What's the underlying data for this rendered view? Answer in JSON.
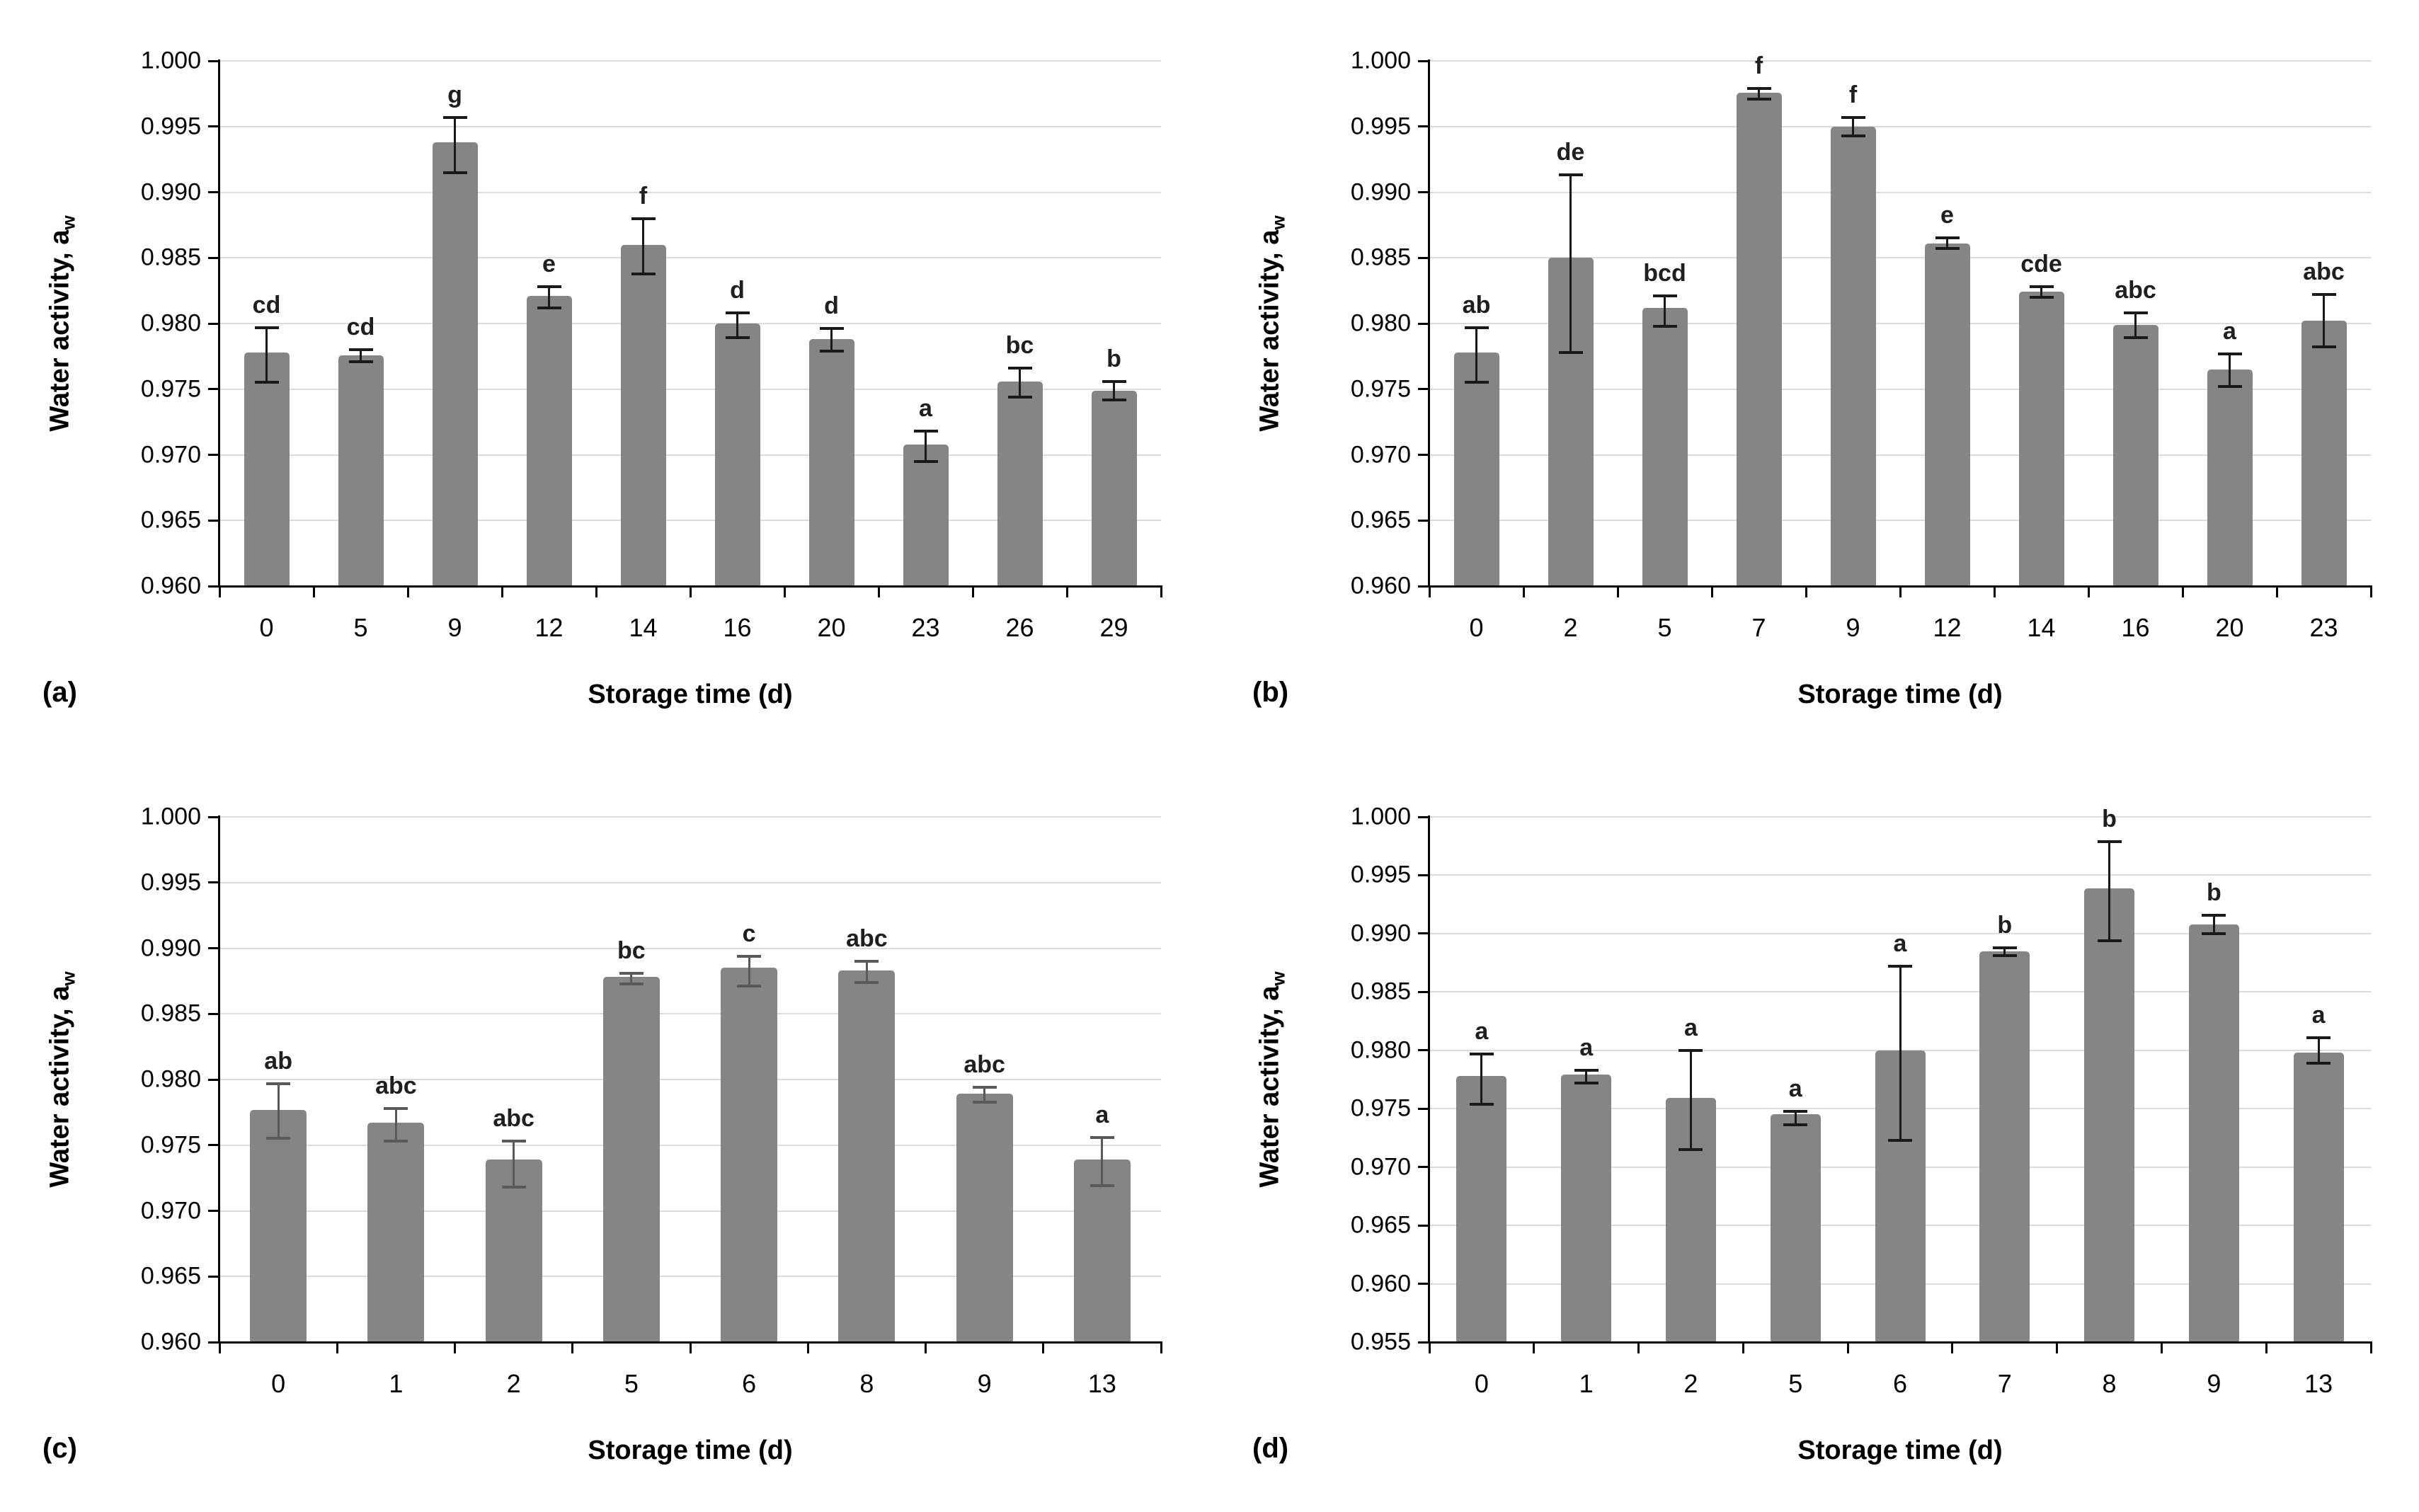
{
  "figure": {
    "y_title_main": "Water activity, a",
    "y_title_sub": "w",
    "x_axis_title": "Storage time (d)",
    "colors": {
      "bar_fill": "#858585",
      "error_default": "#1a1a1a",
      "error_panel_c": "#595959",
      "gridline": "#dcdcdc",
      "axis": "#000000"
    }
  },
  "chart_data": [
    {
      "type": "bar",
      "panel_label": "(a)",
      "title": "",
      "xlabel": "Storage time (d)",
      "ylabel": "Water activity, aw",
      "ylim": [
        0.96,
        1.0
      ],
      "ytick_step": 0.005,
      "grid": true,
      "legend": "none",
      "categories": [
        "0",
        "5",
        "9",
        "12",
        "14",
        "16",
        "20",
        "23",
        "26",
        "29"
      ],
      "values": [
        0.9778,
        0.9776,
        0.9938,
        0.9821,
        0.986,
        0.98,
        0.9788,
        0.9708,
        0.9756,
        0.9749
      ],
      "err_low": [
        0.9755,
        0.9771,
        0.9915,
        0.9812,
        0.9838,
        0.9789,
        0.9779,
        0.9695,
        0.9744,
        0.9742
      ],
      "err_high": [
        0.9797,
        0.978,
        0.9957,
        0.9828,
        0.988,
        0.9808,
        0.9796,
        0.9718,
        0.9766,
        0.9756
      ],
      "letters": [
        "cd",
        "cd",
        "g",
        "e",
        "f",
        "d",
        "d",
        "a",
        "bc",
        "b"
      ],
      "error_color": "#1a1a1a"
    },
    {
      "type": "bar",
      "panel_label": "(b)",
      "title": "",
      "xlabel": "Storage time (d)",
      "ylabel": "Water activity, aw",
      "ylim": [
        0.96,
        1.0
      ],
      "ytick_step": 0.005,
      "grid": true,
      "legend": "none",
      "categories": [
        "0",
        "2",
        "5",
        "7",
        "9",
        "12",
        "14",
        "16",
        "20",
        "23"
      ],
      "values": [
        0.9778,
        0.985,
        0.9812,
        0.9976,
        0.995,
        0.9861,
        0.9824,
        0.9799,
        0.9765,
        0.9802
      ],
      "err_low": [
        0.9755,
        0.9778,
        0.9798,
        0.9971,
        0.9943,
        0.9857,
        0.982,
        0.9789,
        0.9752,
        0.9782
      ],
      "err_high": [
        0.9797,
        0.9913,
        0.9821,
        0.9979,
        0.9957,
        0.9865,
        0.9828,
        0.9808,
        0.9777,
        0.9822
      ],
      "letters": [
        "ab",
        "de",
        "bcd",
        "f",
        "f",
        "e",
        "cde",
        "abc",
        "a",
        "abc"
      ],
      "error_color": "#1a1a1a"
    },
    {
      "type": "bar",
      "panel_label": "(c)",
      "title": "",
      "xlabel": "Storage time (d)",
      "ylabel": "Water activity, aw",
      "ylim": [
        0.96,
        1.0
      ],
      "ytick_step": 0.005,
      "grid": true,
      "legend": "none",
      "categories": [
        "0",
        "1",
        "2",
        "5",
        "6",
        "8",
        "9",
        "13"
      ],
      "values": [
        0.9777,
        0.9767,
        0.9739,
        0.9878,
        0.9885,
        0.9883,
        0.9789,
        0.9739
      ],
      "err_low": [
        0.9755,
        0.9753,
        0.9718,
        0.9873,
        0.9871,
        0.9874,
        0.9783,
        0.9719
      ],
      "err_high": [
        0.9797,
        0.9778,
        0.9753,
        0.9881,
        0.9894,
        0.989,
        0.9794,
        0.9756
      ],
      "letters": [
        "ab",
        "abc",
        "abc",
        "bc",
        "c",
        "abc",
        "abc",
        "a"
      ],
      "error_color": "#595959"
    },
    {
      "type": "bar",
      "panel_label": "(d)",
      "title": "",
      "xlabel": "Storage time (d)",
      "ylabel": "Water activity, aw",
      "ylim": [
        0.955,
        1.0
      ],
      "ytick_step": 0.005,
      "grid": true,
      "legend": "none",
      "categories": [
        "0",
        "1",
        "2",
        "5",
        "6",
        "7",
        "8",
        "9",
        "13"
      ],
      "values": [
        0.9778,
        0.9779,
        0.9759,
        0.9745,
        0.98,
        0.9885,
        0.9939,
        0.9908,
        0.9798
      ],
      "err_low": [
        0.9754,
        0.9772,
        0.9715,
        0.9736,
        0.9723,
        0.9881,
        0.9894,
        0.99,
        0.9789
      ],
      "err_high": [
        0.9797,
        0.9783,
        0.98,
        0.9748,
        0.9872,
        0.9888,
        0.9979,
        0.9916,
        0.9811
      ],
      "letters": [
        "a",
        "a",
        "a",
        "a",
        "a",
        "b",
        "b",
        "b",
        "a"
      ],
      "error_color": "#1a1a1a"
    }
  ]
}
